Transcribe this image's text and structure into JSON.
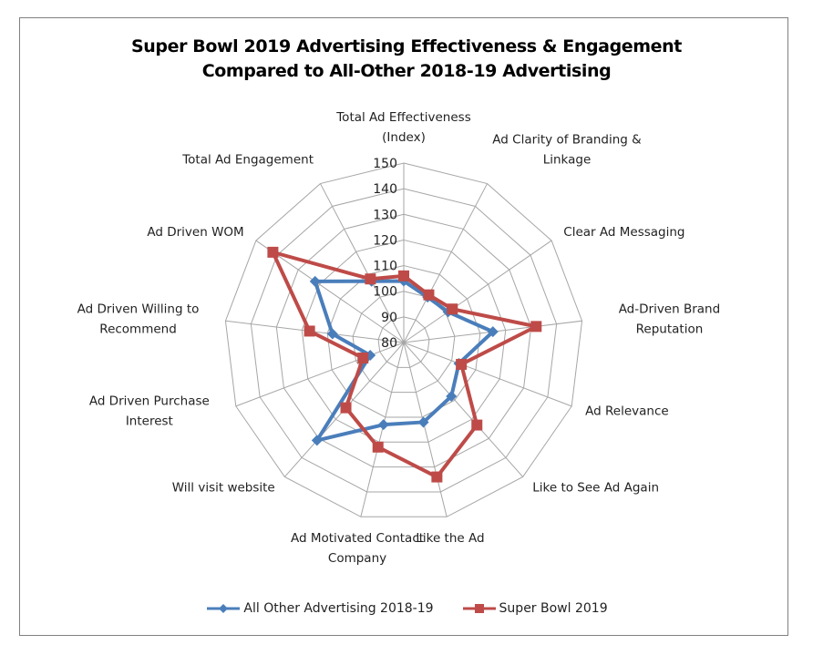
{
  "chart_data": {
    "type": "radar",
    "title": "Super Bowl 2019 Advertising Effectiveness & Engagement Compared to All-Other 2018-19 Advertising",
    "title_lines": [
      "Super Bowl 2019 Advertising Effectiveness & Engagement",
      "Compared to All-Other 2018-19 Advertising"
    ],
    "categories": [
      "Total Ad Effectiveness (Index)",
      "Ad Clarity of Branding & Linkage",
      "Clear Ad Messaging",
      "Ad-Driven Brand Reputation",
      "Ad Relevance",
      "Like to See Ad Again",
      "Like the Ad",
      "Ad Motivated Contact Company",
      "Will visit website",
      "Ad Driven Purchase Interest",
      "Ad Driven Willing to Recommend",
      "Ad Driven WOM",
      "Total Ad Engagement"
    ],
    "category_label_lines": [
      [
        "Total Ad Effectiveness",
        "(Index)"
      ],
      [
        "Ad Clarity of Branding &",
        "Linkage"
      ],
      [
        "Clear Ad Messaging"
      ],
      [
        "Ad-Driven Brand",
        "Reputation"
      ],
      [
        "Ad Relevance"
      ],
      [
        "Like to See Ad Again"
      ],
      [
        "Like the Ad"
      ],
      [
        "Ad Motivated Contact",
        "Company"
      ],
      [
        "Will visit website"
      ],
      [
        "Ad Driven Purchase",
        "Interest"
      ],
      [
        "Ad Driven Willing to",
        "Recommend"
      ],
      [
        "Ad Driven WOM"
      ],
      [
        "Total Ad Engagement"
      ]
    ],
    "series": [
      {
        "name": "All Other Advertising 2018-19",
        "color": "#4a7ebb",
        "marker": "diamond",
        "values": [
          104,
          100,
          101,
          115,
          103,
          108,
          112,
          113,
          131,
          94,
          108,
          122,
          107
        ]
      },
      {
        "name": "Super Bowl 2019",
        "color": "#be4b48",
        "marker": "square",
        "values": [
          106,
          101,
          103,
          132,
          104,
          123,
          134,
          122,
          114,
          97,
          117,
          142,
          108
        ]
      }
    ],
    "rlim": [
      80,
      150
    ],
    "r_ticks": [
      80,
      90,
      100,
      110,
      120,
      130,
      140,
      150
    ],
    "r_tick_labels": [
      "80",
      "90",
      "100",
      "110",
      "120",
      "130",
      "140",
      "150"
    ],
    "grid": true,
    "legend_position": "bottom"
  }
}
